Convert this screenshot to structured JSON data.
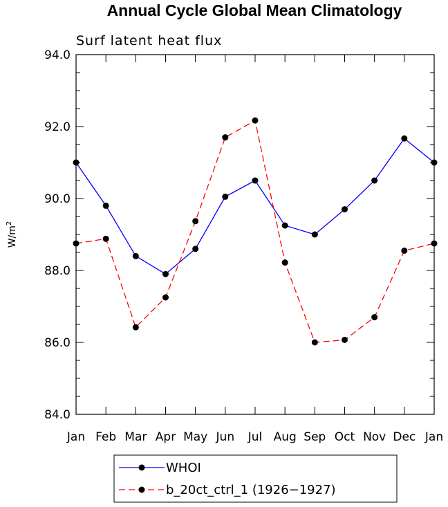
{
  "chart_data": {
    "type": "line",
    "title": "Annual Cycle Global Mean Climatology",
    "subtitle": "Surf latent heat flux",
    "ylabel": "W/m",
    "ylabel_sup": "2",
    "xlabel": "",
    "categories": [
      "Jan",
      "Feb",
      "Mar",
      "Apr",
      "May",
      "Jun",
      "Jul",
      "Aug",
      "Sep",
      "Oct",
      "Nov",
      "Dec",
      "Jan"
    ],
    "ylim": [
      84.0,
      94.0
    ],
    "yticks": [
      84.0,
      86.0,
      88.0,
      90.0,
      92.0,
      94.0
    ],
    "ytick_labels": [
      "84.0",
      "86.0",
      "88.0",
      "90.0",
      "92.0",
      "94.0"
    ],
    "grid": false,
    "legend_position": "bottom",
    "series": [
      {
        "name": "WHOI",
        "color": "#0000ff",
        "dash": "solid",
        "marker": "filled-circle",
        "values": [
          91.0,
          89.8,
          88.4,
          87.9,
          88.6,
          90.05,
          90.5,
          89.25,
          89.0,
          89.7,
          90.5,
          91.67,
          91.0
        ]
      },
      {
        "name": "b_20ct_ctrl_1 (1926−1927)",
        "color": "#ff0000",
        "dash": "dashed",
        "marker": "filled-circle",
        "values": [
          88.75,
          88.88,
          86.42,
          87.25,
          89.37,
          91.7,
          92.17,
          88.22,
          86.0,
          86.07,
          86.7,
          88.55,
          88.75
        ]
      }
    ]
  }
}
